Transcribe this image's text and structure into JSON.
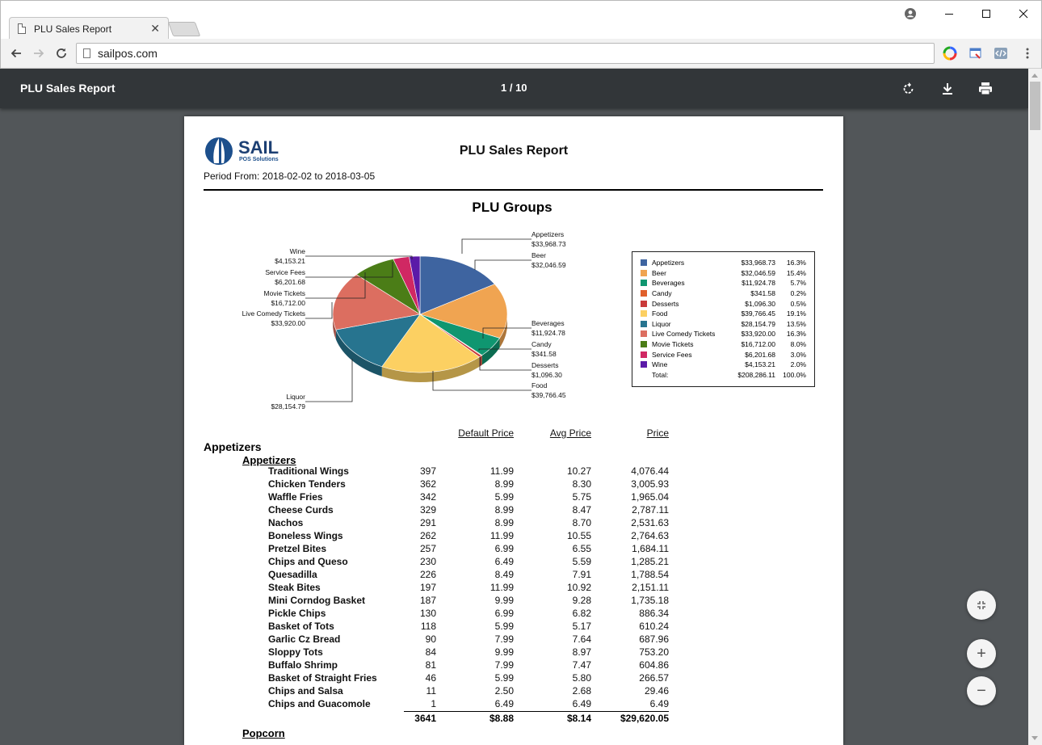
{
  "browser": {
    "tab_title": "PLU Sales Report",
    "tab_close": "✕",
    "url": "sailpos.com",
    "window_controls": [
      "account-icon",
      "minimize-icon",
      "maximize-icon",
      "close-icon"
    ]
  },
  "viewer": {
    "title": "PLU Sales Report",
    "page_indicator": "1  /  10"
  },
  "report": {
    "logo_text": "SAIL",
    "logo_sub": "POS Solutions",
    "title": "PLU Sales Report",
    "period": "Period From: 2018-02-02 to 2018-03-05",
    "section": "PLU Groups"
  },
  "chart_data": {
    "type": "pie",
    "title": "PLU Groups",
    "slices": [
      {
        "name": "Appetizers",
        "value": 33968.73,
        "label": "$33,968.73",
        "pct": "16.3%",
        "color": "#3e64a0"
      },
      {
        "name": "Beer",
        "value": 32046.59,
        "label": "$32,046.59",
        "pct": "15.4%",
        "color": "#f0a451"
      },
      {
        "name": "Beverages",
        "value": 11924.78,
        "label": "$11,924.78",
        "pct": "5.7%",
        "color": "#0f9670"
      },
      {
        "name": "Candy",
        "value": 341.58,
        "label": "$341.58",
        "pct": "0.2%",
        "color": "#e0602c"
      },
      {
        "name": "Desserts",
        "value": 1096.3,
        "label": "$1,096.30",
        "pct": "0.5%",
        "color": "#c93a3a"
      },
      {
        "name": "Food",
        "value": 39766.45,
        "label": "$39,766.45",
        "pct": "19.1%",
        "color": "#fcd062"
      },
      {
        "name": "Liquor",
        "value": 28154.79,
        "label": "$28,154.79",
        "pct": "13.5%",
        "color": "#27748f"
      },
      {
        "name": "Live Comedy Tickets",
        "value": 33920.0,
        "label": "$33,920.00",
        "pct": "16.3%",
        "color": "#dc6e60"
      },
      {
        "name": "Movie Tickets",
        "value": 16712.0,
        "label": "$16,712.00",
        "pct": "8.0%",
        "color": "#4b7d17"
      },
      {
        "name": "Service Fees",
        "value": 6201.68,
        "label": "$6,201.68",
        "pct": "3.0%",
        "color": "#d02863"
      },
      {
        "name": "Wine",
        "value": 4153.21,
        "label": "$4,153.21",
        "pct": "2.0%",
        "color": "#5b1aa8"
      }
    ],
    "total_label": "Total:",
    "total": "$208,286.11",
    "total_pct": "100.0%",
    "legend_position": "right"
  },
  "table": {
    "headers": {
      "default_price": "Default Price",
      "avg_price": "Avg Price",
      "price": "Price"
    },
    "group": "Appetizers",
    "subgroup": "Appetizers",
    "rows": [
      [
        "Traditional Wings",
        "397",
        "11.99",
        "10.27",
        "4,076.44"
      ],
      [
        "Chicken Tenders",
        "362",
        "8.99",
        "8.30",
        "3,005.93"
      ],
      [
        "Waffle Fries",
        "342",
        "5.99",
        "5.75",
        "1,965.04"
      ],
      [
        "Cheese Curds",
        "329",
        "8.99",
        "8.47",
        "2,787.11"
      ],
      [
        "Nachos",
        "291",
        "8.99",
        "8.70",
        "2,531.63"
      ],
      [
        "Boneless Wings",
        "262",
        "11.99",
        "10.55",
        "2,764.63"
      ],
      [
        "Pretzel Bites",
        "257",
        "6.99",
        "6.55",
        "1,684.11"
      ],
      [
        "Chips and Queso",
        "230",
        "6.49",
        "5.59",
        "1,285.21"
      ],
      [
        "Quesadilla",
        "226",
        "8.49",
        "7.91",
        "1,788.54"
      ],
      [
        "Steak Bites",
        "197",
        "11.99",
        "10.92",
        "2,151.11"
      ],
      [
        "Mini Corndog Basket",
        "187",
        "9.99",
        "9.28",
        "1,735.18"
      ],
      [
        "Pickle Chips",
        "130",
        "6.99",
        "6.82",
        "886.34"
      ],
      [
        "Basket of Tots",
        "118",
        "5.99",
        "5.17",
        "610.24"
      ],
      [
        "Garlic Cz Bread",
        "90",
        "7.99",
        "7.64",
        "687.96"
      ],
      [
        "Sloppy Tots",
        "84",
        "9.99",
        "8.97",
        "753.20"
      ],
      [
        "Buffalo Shrimp",
        "81",
        "7.99",
        "7.47",
        "604.86"
      ],
      [
        "Basket of Straight Fries",
        "46",
        "5.99",
        "5.80",
        "266.57"
      ],
      [
        "Chips and Salsa",
        "11",
        "2.50",
        "2.68",
        "29.46"
      ],
      [
        "Chips and Guacomole",
        "1",
        "6.49",
        "6.49",
        "6.49"
      ]
    ],
    "totals": {
      "qty": "3641",
      "default_price": "$8.88",
      "avg_price": "$8.14",
      "price": "$29,620.05"
    },
    "next_subgroup": "Popcorn"
  },
  "fabs": {
    "fit": "fit-page-icon",
    "zoom_in": "+",
    "zoom_out": "−"
  }
}
